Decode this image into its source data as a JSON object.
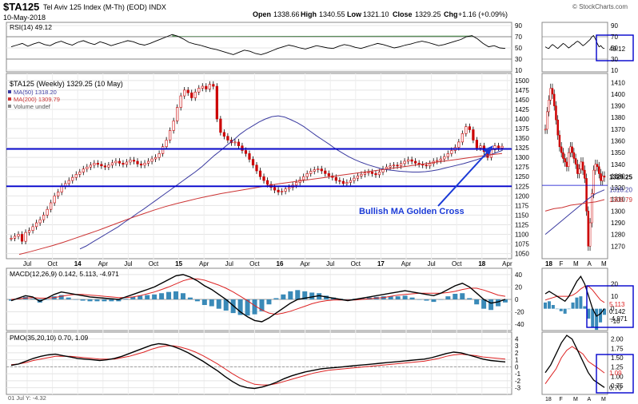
{
  "header": {
    "symbol": "$TA125",
    "description": "Tel Aviv 125 Index (M-Th) (EOD)  INDX",
    "date": "10-May-2018",
    "open_label": "Open",
    "open": "1338.66",
    "high_label": "High",
    "high": "1340.55",
    "low_label": "Low",
    "low": "1321.10",
    "close_label": "Close",
    "close": "1329.25",
    "chg_label": "Chg",
    "chg": "+1.16 (+0.09%)",
    "brand": "© StockCharts.com"
  },
  "colors": {
    "price_up": "#cc0000",
    "price_down": "#cc0000",
    "ma50": "#3a3aa0",
    "ma200": "#cc3333",
    "hline": "#0000cc",
    "annotation": "#1a3ad6",
    "hist": "#3a8ab8",
    "macd": "#000000",
    "signal": "#dd2222",
    "rsi_fill": "#2f7a2f",
    "highlight_box": "#0000cc"
  },
  "annotation": {
    "text": "Bullish MA Golden Cross"
  },
  "footer": {
    "text": "01 Jul Y: -4.32"
  },
  "chart_data": [
    {
      "panel": "rsi",
      "type": "line",
      "legend": "RSI(14) 49.12",
      "y_ticks": [
        90,
        70,
        50,
        30,
        10
      ],
      "ylim": [
        10,
        90
      ],
      "overbought": 70,
      "oversold": 30,
      "right_ticks": [
        90,
        70,
        50,
        30,
        10
      ],
      "current_value": "49.12",
      "values": [
        52,
        55,
        58,
        53,
        57,
        60,
        56,
        54,
        59,
        62,
        58,
        55,
        60,
        63,
        59,
        56,
        61,
        58,
        54,
        57,
        60,
        63,
        61,
        57,
        55,
        58,
        62,
        66,
        70,
        74,
        71,
        66,
        60,
        57,
        55,
        52,
        49,
        47,
        44,
        41,
        38,
        42,
        46,
        44,
        40,
        38,
        41,
        45,
        49,
        52,
        55,
        53,
        50,
        48,
        51,
        54,
        52,
        50,
        49,
        53,
        56,
        54,
        51,
        49,
        52,
        55,
        58,
        56,
        53,
        50,
        52,
        55,
        57,
        60,
        62,
        60,
        57,
        54,
        56,
        59,
        62,
        65,
        70,
        72,
        66,
        58,
        52,
        54,
        50,
        49
      ]
    },
    {
      "panel": "price",
      "type": "ohlc",
      "legend": [
        "$TA125 (Weekly) 1329.25 (10 May)",
        "MA(50) 1318.20",
        "MA(200) 1309.79",
        "Volume undef"
      ],
      "x_labels": [
        "Jul",
        "Oct",
        "14",
        "Apr",
        "Jul",
        "Oct",
        "15",
        "Apr",
        "Jul",
        "Oct",
        "16",
        "Apr",
        "Jul",
        "Oct",
        "17",
        "Apr",
        "Jul",
        "Oct",
        "18",
        "Apr"
      ],
      "y_ticks": [
        1500,
        1475,
        1450,
        1425,
        1400,
        1375,
        1350,
        1325,
        1300,
        1275,
        1250,
        1225,
        1200,
        1175,
        1150,
        1125,
        1100,
        1075,
        1050
      ],
      "ylim": [
        1045,
        1510
      ],
      "support": 1225,
      "resistance": 1322,
      "close": [
        1090,
        1095,
        1100,
        1082,
        1105,
        1110,
        1120,
        1130,
        1138,
        1150,
        1165,
        1182,
        1200,
        1210,
        1225,
        1232,
        1240,
        1248,
        1256,
        1262,
        1270,
        1275,
        1280,
        1285,
        1282,
        1278,
        1275,
        1280,
        1286,
        1290,
        1285,
        1282,
        1288,
        1293,
        1290,
        1283,
        1280,
        1285,
        1290,
        1296,
        1300,
        1310,
        1328,
        1345,
        1370,
        1395,
        1430,
        1460,
        1475,
        1468,
        1455,
        1470,
        1480,
        1485,
        1478,
        1490,
        1485,
        1400,
        1365,
        1355,
        1345,
        1338,
        1340,
        1330,
        1318,
        1310,
        1295,
        1280,
        1265,
        1250,
        1240,
        1230,
        1222,
        1215,
        1210,
        1212,
        1218,
        1222,
        1228,
        1235,
        1242,
        1250,
        1258,
        1264,
        1268,
        1270,
        1265,
        1258,
        1252,
        1248,
        1240,
        1238,
        1232,
        1235,
        1240,
        1246,
        1252,
        1256,
        1260,
        1262,
        1258,
        1255,
        1262,
        1270,
        1275,
        1278,
        1280,
        1278,
        1284,
        1290,
        1294,
        1290,
        1285,
        1282,
        1280,
        1278,
        1284,
        1290,
        1292,
        1296,
        1302,
        1310,
        1318,
        1326,
        1340,
        1362,
        1380,
        1372,
        1345,
        1325,
        1330,
        1315,
        1300,
        1320,
        1330,
        1325,
        1329
      ],
      "ma50": [
        1062,
        1070,
        1080,
        1090,
        1100,
        1110,
        1120,
        1132,
        1143,
        1155,
        1166,
        1178,
        1190,
        1202,
        1214,
        1226,
        1238,
        1250,
        1262,
        1275,
        1290,
        1305,
        1318,
        1332,
        1345,
        1360,
        1372,
        1382,
        1392,
        1400,
        1406,
        1408,
        1405,
        1398,
        1390,
        1380,
        1368,
        1356,
        1345,
        1334,
        1322,
        1312,
        1302,
        1294,
        1287,
        1281,
        1276,
        1271,
        1268,
        1266,
        1264,
        1263,
        1262,
        1262,
        1263,
        1265,
        1268,
        1272,
        1276,
        1280,
        1284,
        1289,
        1294,
        1300,
        1306,
        1312,
        1318
      ],
      "ma200": [
        1048,
        1055,
        1063,
        1071,
        1080,
        1090,
        1100,
        1110,
        1121,
        1132,
        1143,
        1153,
        1163,
        1172,
        1180,
        1187,
        1194,
        1200,
        1206,
        1211,
        1216,
        1221,
        1226,
        1231,
        1235,
        1239,
        1243,
        1247,
        1251,
        1255,
        1259,
        1263,
        1267,
        1271,
        1275,
        1279,
        1283,
        1287,
        1291,
        1295,
        1299,
        1303,
        1307,
        1310
      ]
    },
    {
      "panel": "macd",
      "type": "line+bar",
      "legend": "MACD(12,26,9) 0.142, 5.113, -4.971",
      "y_ticks": [
        40,
        20,
        0,
        -20,
        -40
      ],
      "ylim": [
        -45,
        45
      ],
      "right_ticks": [
        20,
        10,
        0,
        -10
      ],
      "right_values": [
        "5.113",
        "0.142",
        "-4.971"
      ],
      "macd": [
        -2,
        2,
        6,
        4,
        -3,
        2,
        8,
        12,
        10,
        8,
        6,
        4,
        3,
        2,
        1,
        0,
        4,
        8,
        12,
        16,
        20,
        26,
        32,
        38,
        40,
        36,
        30,
        22,
        16,
        8,
        0,
        -10,
        -20,
        -28,
        -34,
        -36,
        -30,
        -22,
        -14,
        -6,
        0,
        2,
        4,
        6,
        4,
        2,
        0,
        -2,
        0,
        2,
        4,
        6,
        8,
        10,
        12,
        14,
        12,
        10,
        8,
        6,
        10,
        16,
        22,
        26,
        20,
        10,
        0,
        -6,
        -4,
        0.1
      ],
      "signal": [
        0,
        1,
        2,
        3,
        2,
        2,
        3,
        5,
        7,
        8,
        8,
        7,
        6,
        5,
        4,
        3,
        3,
        4,
        6,
        9,
        12,
        16,
        20,
        25,
        30,
        33,
        33,
        31,
        27,
        23,
        18,
        12,
        5,
        -2,
        -10,
        -17,
        -22,
        -24,
        -22,
        -19,
        -15,
        -11,
        -7,
        -4,
        -2,
        -1,
        -1,
        -1,
        -1,
        0,
        1,
        2,
        3,
        5,
        7,
        8,
        9,
        10,
        10,
        10,
        10,
        11,
        13,
        16,
        18,
        18,
        15,
        11,
        7,
        5
      ]
    },
    {
      "panel": "pmo",
      "type": "line",
      "legend": "PMO(35,20,10) 0.70, 1.09",
      "y_ticks": [
        4,
        3,
        2,
        1,
        0,
        -1,
        -2,
        -3
      ],
      "ylim": [
        -3.5,
        4.5
      ],
      "right_ticks": [
        2.0,
        1.75,
        1.5,
        1.25,
        1.0,
        0.75
      ],
      "right_values": [
        "1.09",
        "0.70"
      ],
      "pmo": [
        0.2,
        0.4,
        0.8,
        1.2,
        1.5,
        1.7,
        1.8,
        1.6,
        1.4,
        1.2,
        1.1,
        1.0,
        0.9,
        1.0,
        1.2,
        1.5,
        1.9,
        2.3,
        2.7,
        3.1,
        3.3,
        3.2,
        2.9,
        2.5,
        2.0,
        1.4,
        0.8,
        0.1,
        -0.6,
        -1.4,
        -2.1,
        -2.7,
        -3.0,
        -3.1,
        -2.9,
        -2.6,
        -2.2,
        -1.7,
        -1.3,
        -1.0,
        -0.7,
        -0.5,
        -0.3,
        -0.2,
        -0.1,
        0.0,
        0.1,
        0.2,
        0.3,
        0.4,
        0.5,
        0.6,
        0.7,
        0.8,
        0.9,
        1.0,
        1.1,
        1.3,
        1.6,
        1.9,
        2.1,
        2.0,
        1.7,
        1.4,
        1.1,
        0.9,
        0.8,
        0.7
      ],
      "signal": [
        0.3,
        0.4,
        0.6,
        0.9,
        1.1,
        1.3,
        1.5,
        1.5,
        1.5,
        1.4,
        1.3,
        1.2,
        1.1,
        1.1,
        1.1,
        1.3,
        1.5,
        1.8,
        2.1,
        2.5,
        2.8,
        3.0,
        3.0,
        2.8,
        2.5,
        2.1,
        1.6,
        1.0,
        0.4,
        -0.3,
        -1.0,
        -1.6,
        -2.1,
        -2.5,
        -2.6,
        -2.6,
        -2.4,
        -2.1,
        -1.8,
        -1.5,
        -1.2,
        -0.9,
        -0.7,
        -0.5,
        -0.4,
        -0.3,
        -0.2,
        -0.1,
        0.0,
        0.1,
        0.2,
        0.3,
        0.4,
        0.5,
        0.6,
        0.7,
        0.8,
        1.0,
        1.2,
        1.5,
        1.7,
        1.8,
        1.7,
        1.6,
        1.4,
        1.3,
        1.2,
        1.09
      ]
    },
    {
      "panel": "daily-inset",
      "type": "ohlc",
      "x_labels": [
        "18",
        "F",
        "M",
        "A",
        "M"
      ],
      "y_ticks": [
        1410,
        1400,
        1390,
        1380,
        1370,
        1360,
        1350,
        1340,
        1330,
        1320,
        1310,
        1300,
        1290,
        1280,
        1270
      ],
      "ylim": [
        1262,
        1415
      ],
      "right_values": [
        "1329.25",
        "1318.20",
        "1309.79"
      ],
      "close": [
        1370,
        1385,
        1395,
        1405,
        1400,
        1390,
        1378,
        1365,
        1355,
        1350,
        1345,
        1342,
        1338,
        1350,
        1355,
        1350,
        1345,
        1340,
        1332,
        1336,
        1342,
        1335,
        1328,
        1300,
        1270,
        1290,
        1315,
        1335,
        1340,
        1338,
        1332,
        1326,
        1330,
        1329
      ]
    }
  ]
}
